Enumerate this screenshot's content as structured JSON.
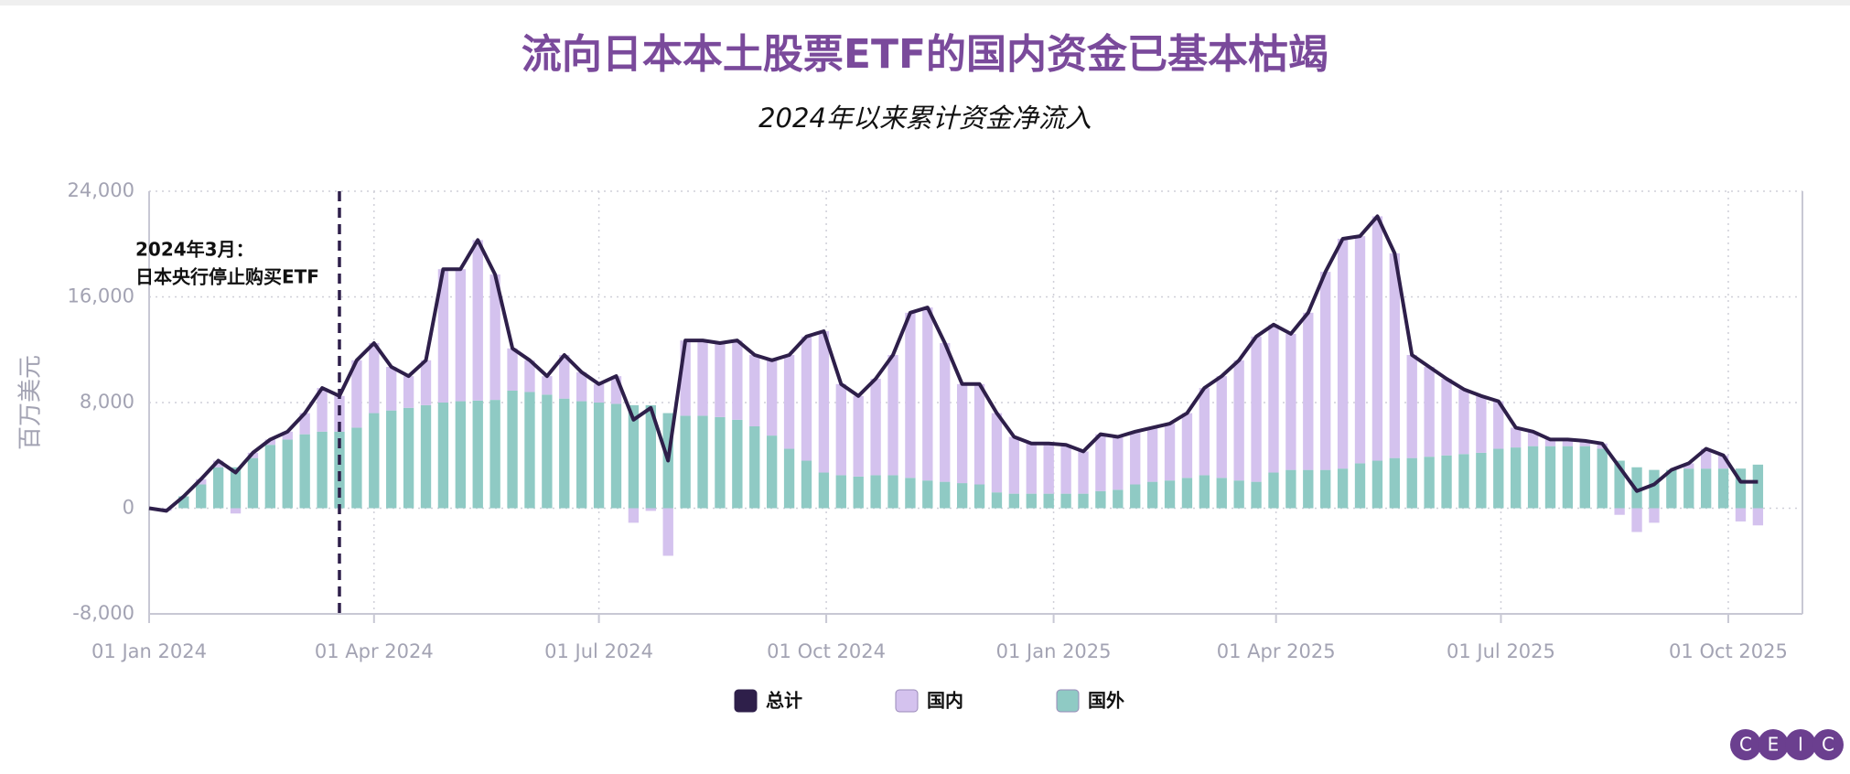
{
  "chart_data": {
    "type": "bar",
    "stacked": true,
    "title": "流向日本本土股票ETF的国内资金已基本枯竭",
    "subtitle": "2024年以来累计资金净流入",
    "y_label": "百万美元",
    "x": [
      "2024-01-01",
      "2024-01-08",
      "2024-01-15",
      "2024-01-22",
      "2024-01-29",
      "2024-02-05",
      "2024-02-12",
      "2024-02-19",
      "2024-02-26",
      "2024-03-04",
      "2024-03-11",
      "2024-03-18",
      "2024-03-25",
      "2024-04-01",
      "2024-04-08",
      "2024-04-15",
      "2024-04-22",
      "2024-04-29",
      "2024-05-06",
      "2024-05-13",
      "2024-05-20",
      "2024-05-27",
      "2024-06-03",
      "2024-06-10",
      "2024-06-17",
      "2024-06-24",
      "2024-07-01",
      "2024-07-08",
      "2024-07-15",
      "2024-07-22",
      "2024-07-29",
      "2024-08-05",
      "2024-08-12",
      "2024-08-19",
      "2024-08-26",
      "2024-09-02",
      "2024-09-09",
      "2024-09-16",
      "2024-09-23",
      "2024-09-30",
      "2024-10-07",
      "2024-10-14",
      "2024-10-21",
      "2024-10-28",
      "2024-11-04",
      "2024-11-11",
      "2024-11-18",
      "2024-11-25",
      "2024-12-02",
      "2024-12-09",
      "2024-12-16",
      "2024-12-23",
      "2024-12-30",
      "2025-01-06",
      "2025-01-13",
      "2025-01-20",
      "2025-01-27",
      "2025-02-03",
      "2025-02-10",
      "2025-02-17",
      "2025-02-24",
      "2025-03-03",
      "2025-03-10",
      "2025-03-17",
      "2025-03-24",
      "2025-03-31",
      "2025-04-07",
      "2025-04-14",
      "2025-04-21",
      "2025-04-28",
      "2025-05-05",
      "2025-05-12",
      "2025-05-19",
      "2025-05-26",
      "2025-06-02",
      "2025-06-09",
      "2025-06-16",
      "2025-06-23",
      "2025-06-30",
      "2025-07-07",
      "2025-07-14",
      "2025-07-21",
      "2025-07-28",
      "2025-08-04",
      "2025-08-11",
      "2025-08-18",
      "2025-08-25",
      "2025-09-01",
      "2025-09-08",
      "2025-09-15",
      "2025-09-22",
      "2025-09-29",
      "2025-10-06",
      "2025-10-13"
    ],
    "series": [
      {
        "name": "总计",
        "type": "line",
        "color": "#2e1f4a",
        "values": [
          0,
          -200,
          900,
          2200,
          3600,
          2700,
          4200,
          5200,
          5800,
          7200,
          9100,
          8500,
          11200,
          12500,
          10700,
          10000,
          11200,
          18100,
          18100,
          20300,
          17700,
          12100,
          11200,
          10000,
          11600,
          10300,
          9400,
          10000,
          6700,
          7600,
          3600,
          12700,
          12700,
          12500,
          12700,
          11600,
          11200,
          11600,
          13000,
          13400,
          9400,
          8500,
          9800,
          11600,
          14800,
          15200,
          12500,
          9400,
          9400,
          7200,
          5400,
          4900,
          4900,
          4800,
          4300,
          5600,
          5400,
          5800,
          6100,
          6400,
          7200,
          9100,
          10000,
          11200,
          13000,
          13900,
          13200,
          14800,
          17900,
          20400,
          20600,
          22100,
          19300,
          11600,
          10700,
          9800,
          9000,
          8500,
          8100,
          6100,
          5800,
          5200,
          5200,
          5100,
          4900,
          3100,
          1300,
          1800,
          2900,
          3400,
          4500,
          4000,
          2000,
          2000
        ]
      },
      {
        "name": "国内",
        "color": "#d4c2ee",
        "values": [
          0,
          -200,
          0,
          400,
          500,
          -400,
          400,
          400,
          600,
          1600,
          3300,
          2700,
          5100,
          5300,
          3300,
          2400,
          3400,
          10100,
          10000,
          12150,
          9500,
          3200,
          2400,
          1400,
          3300,
          2200,
          1400,
          2100,
          -1100,
          -200,
          -3600,
          5700,
          5700,
          5600,
          6000,
          5400,
          5700,
          7100,
          9400,
          10700,
          6900,
          6100,
          7300,
          9100,
          12500,
          13100,
          10500,
          7500,
          7600,
          6000,
          4300,
          3800,
          3800,
          3700,
          3200,
          4300,
          4000,
          4000,
          4100,
          4300,
          4900,
          6600,
          7700,
          9100,
          11000,
          11200,
          10300,
          11900,
          15000,
          17400,
          17200,
          18500,
          15500,
          7800,
          6800,
          5800,
          4900,
          4300,
          3600,
          1500,
          1100,
          500,
          500,
          400,
          400,
          -500,
          -1800,
          -1100,
          0,
          400,
          1500,
          1000,
          -1000,
          -1300
        ]
      },
      {
        "name": "国外",
        "color": "#8fcac4",
        "values": [
          0,
          0,
          900,
          1800,
          3100,
          3100,
          3800,
          4800,
          5200,
          5600,
          5800,
          5800,
          6100,
          7200,
          7400,
          7600,
          7800,
          8000,
          8100,
          8150,
          8200,
          8900,
          8800,
          8600,
          8300,
          8100,
          8000,
          7900,
          7800,
          7800,
          7200,
          7000,
          7000,
          6900,
          6700,
          6200,
          5500,
          4500,
          3600,
          2700,
          2500,
          2400,
          2500,
          2500,
          2300,
          2100,
          2000,
          1900,
          1800,
          1200,
          1100,
          1100,
          1100,
          1100,
          1100,
          1300,
          1400,
          1800,
          2000,
          2100,
          2300,
          2500,
          2300,
          2100,
          2000,
          2700,
          2900,
          2900,
          2900,
          3000,
          3400,
          3600,
          3800,
          3800,
          3900,
          4000,
          4100,
          4200,
          4500,
          4600,
          4700,
          4700,
          4700,
          4700,
          4500,
          3600,
          3100,
          2900,
          2900,
          3000,
          3000,
          3000,
          3000,
          3300
        ]
      }
    ],
    "xlim": [
      "2024-01-01",
      "2025-10-31"
    ],
    "xticks": [
      {
        "value": "2024-01-01",
        "label": "01 Jan 2024"
      },
      {
        "value": "2024-04-01",
        "label": "01 Apr 2024"
      },
      {
        "value": "2024-07-01",
        "label": "01 Jul 2024"
      },
      {
        "value": "2024-10-01",
        "label": "01 Oct 2024"
      },
      {
        "value": "2025-01-01",
        "label": "01 Jan 2025"
      },
      {
        "value": "2025-04-01",
        "label": "01 Apr 2025"
      },
      {
        "value": "2025-07-01",
        "label": "01 Jul 2025"
      },
      {
        "value": "2025-10-01",
        "label": "01 Oct 2025"
      }
    ],
    "ylim": [
      -8000,
      24000
    ],
    "yticks": [
      {
        "value": -8000,
        "label": "-8,000"
      },
      0,
      {
        "value": 8000,
        "label": "8,000"
      },
      {
        "value": 16000,
        "label": "16,000"
      },
      {
        "value": 24000,
        "label": "24,000"
      }
    ],
    "grid": true,
    "legend": "bottom",
    "annotations": [
      {
        "x": "2024-03-18",
        "lines": [
          "2024年3月：",
          "日本央行停止购买ETF"
        ]
      }
    ]
  },
  "logo": [
    "C",
    "E",
    "I",
    "C"
  ]
}
